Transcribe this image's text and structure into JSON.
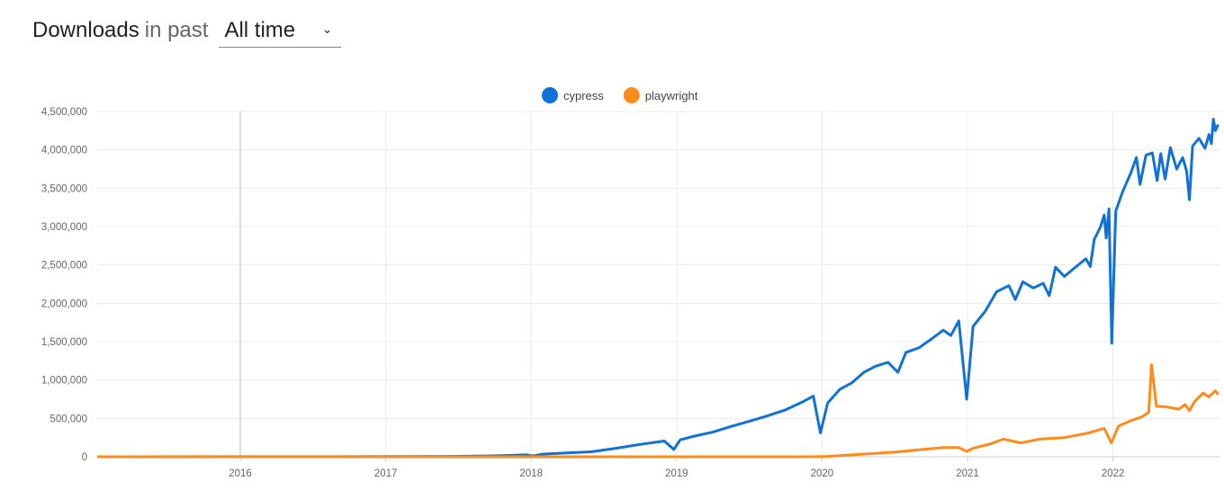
{
  "header": {
    "title_bold": "Downloads",
    "title_rest": "in past",
    "period_select": "All time",
    "chevron_icon": "chevron-down-icon"
  },
  "chart_data": {
    "type": "line",
    "legend_position": "top-center",
    "grid": true,
    "ylim": [
      0,
      4500000
    ],
    "y_ticks": [
      "0",
      "500,000",
      "1,000,000",
      "1,500,000",
      "2,000,000",
      "2,500,000",
      "3,000,000",
      "3,500,000",
      "4,000,000",
      "4,500,000"
    ],
    "y_tick_values": [
      0,
      500000,
      1000000,
      1500000,
      2000000,
      2500000,
      3000000,
      3500000,
      4000000,
      4500000
    ],
    "x_ticks": [
      "2016",
      "2017",
      "2018",
      "2019",
      "2020",
      "2021",
      "2022"
    ],
    "xlim": [
      "2015-01-01",
      "2022-09-24"
    ],
    "series": [
      {
        "name": "cypress",
        "color": "#1172d6",
        "points": [
          [
            "2015-01-01",
            0
          ],
          [
            "2016-01-01",
            1000
          ],
          [
            "2017-01-01",
            2000
          ],
          [
            "2017-06-01",
            5000
          ],
          [
            "2017-10-01",
            12000
          ],
          [
            "2017-12-20",
            25000
          ],
          [
            "2018-01-05",
            10000
          ],
          [
            "2018-02-01",
            35000
          ],
          [
            "2018-04-01",
            50000
          ],
          [
            "2018-06-01",
            65000
          ],
          [
            "2018-08-01",
            110000
          ],
          [
            "2018-10-01",
            160000
          ],
          [
            "2018-12-01",
            205000
          ],
          [
            "2018-12-25",
            95000
          ],
          [
            "2019-01-10",
            220000
          ],
          [
            "2019-02-15",
            270000
          ],
          [
            "2019-04-01",
            320000
          ],
          [
            "2019-05-15",
            390000
          ],
          [
            "2019-07-01",
            460000
          ],
          [
            "2019-08-15",
            530000
          ],
          [
            "2019-10-01",
            610000
          ],
          [
            "2019-11-15",
            720000
          ],
          [
            "2019-12-10",
            790000
          ],
          [
            "2019-12-28",
            310000
          ],
          [
            "2020-01-15",
            700000
          ],
          [
            "2020-02-15",
            880000
          ],
          [
            "2020-03-15",
            960000
          ],
          [
            "2020-04-15",
            1100000
          ],
          [
            "2020-05-15",
            1180000
          ],
          [
            "2020-06-15",
            1230000
          ],
          [
            "2020-07-10",
            1100000
          ],
          [
            "2020-07-30",
            1360000
          ],
          [
            "2020-09-01",
            1420000
          ],
          [
            "2020-10-01",
            1530000
          ],
          [
            "2020-11-01",
            1650000
          ],
          [
            "2020-11-20",
            1580000
          ],
          [
            "2020-12-10",
            1770000
          ],
          [
            "2020-12-30",
            750000
          ],
          [
            "2021-01-15",
            1700000
          ],
          [
            "2021-02-15",
            1900000
          ],
          [
            "2021-03-15",
            2150000
          ],
          [
            "2021-04-15",
            2230000
          ],
          [
            "2021-05-01",
            2050000
          ],
          [
            "2021-05-20",
            2280000
          ],
          [
            "2021-06-15",
            2200000
          ],
          [
            "2021-07-10",
            2260000
          ],
          [
            "2021-07-25",
            2100000
          ],
          [
            "2021-08-10",
            2470000
          ],
          [
            "2021-09-01",
            2350000
          ],
          [
            "2021-10-01",
            2480000
          ],
          [
            "2021-10-25",
            2580000
          ],
          [
            "2021-11-05",
            2480000
          ],
          [
            "2021-11-15",
            2830000
          ],
          [
            "2021-12-01",
            3000000
          ],
          [
            "2021-12-10",
            3150000
          ],
          [
            "2021-12-15",
            2850000
          ],
          [
            "2021-12-22",
            3230000
          ],
          [
            "2021-12-29",
            1480000
          ],
          [
            "2022-01-08",
            3200000
          ],
          [
            "2022-01-25",
            3450000
          ],
          [
            "2022-02-15",
            3700000
          ],
          [
            "2022-03-01",
            3900000
          ],
          [
            "2022-03-10",
            3550000
          ],
          [
            "2022-03-25",
            3930000
          ],
          [
            "2022-04-10",
            3960000
          ],
          [
            "2022-04-22",
            3600000
          ],
          [
            "2022-05-01",
            3950000
          ],
          [
            "2022-05-12",
            3620000
          ],
          [
            "2022-05-25",
            4030000
          ],
          [
            "2022-06-10",
            3750000
          ],
          [
            "2022-06-25",
            3900000
          ],
          [
            "2022-07-05",
            3720000
          ],
          [
            "2022-07-12",
            3350000
          ],
          [
            "2022-07-20",
            4050000
          ],
          [
            "2022-08-05",
            4150000
          ],
          [
            "2022-08-20",
            4020000
          ],
          [
            "2022-08-30",
            4200000
          ],
          [
            "2022-09-05",
            4080000
          ],
          [
            "2022-09-10",
            4400000
          ],
          [
            "2022-09-15",
            4250000
          ],
          [
            "2022-09-22",
            4330000
          ]
        ]
      },
      {
        "name": "playwright",
        "color": "#ff8c1a",
        "points": [
          [
            "2015-01-01",
            0
          ],
          [
            "2019-12-01",
            0
          ],
          [
            "2020-01-15",
            5000
          ],
          [
            "2020-03-01",
            20000
          ],
          [
            "2020-05-01",
            40000
          ],
          [
            "2020-07-01",
            60000
          ],
          [
            "2020-09-01",
            90000
          ],
          [
            "2020-11-01",
            120000
          ],
          [
            "2020-12-10",
            120000
          ],
          [
            "2020-12-30",
            70000
          ],
          [
            "2021-01-15",
            110000
          ],
          [
            "2021-03-01",
            170000
          ],
          [
            "2021-04-01",
            230000
          ],
          [
            "2021-05-15",
            180000
          ],
          [
            "2021-07-01",
            230000
          ],
          [
            "2021-09-01",
            250000
          ],
          [
            "2021-11-01",
            310000
          ],
          [
            "2021-12-10",
            370000
          ],
          [
            "2021-12-28",
            180000
          ],
          [
            "2022-01-15",
            400000
          ],
          [
            "2022-02-15",
            470000
          ],
          [
            "2022-03-15",
            520000
          ],
          [
            "2022-04-01",
            580000
          ],
          [
            "2022-04-08",
            1200000
          ],
          [
            "2022-04-20",
            660000
          ],
          [
            "2022-05-15",
            650000
          ],
          [
            "2022-06-15",
            620000
          ],
          [
            "2022-07-01",
            680000
          ],
          [
            "2022-07-12",
            600000
          ],
          [
            "2022-07-25",
            720000
          ],
          [
            "2022-08-15",
            830000
          ],
          [
            "2022-08-30",
            780000
          ],
          [
            "2022-09-15",
            860000
          ],
          [
            "2022-09-22",
            810000
          ]
        ]
      }
    ]
  }
}
